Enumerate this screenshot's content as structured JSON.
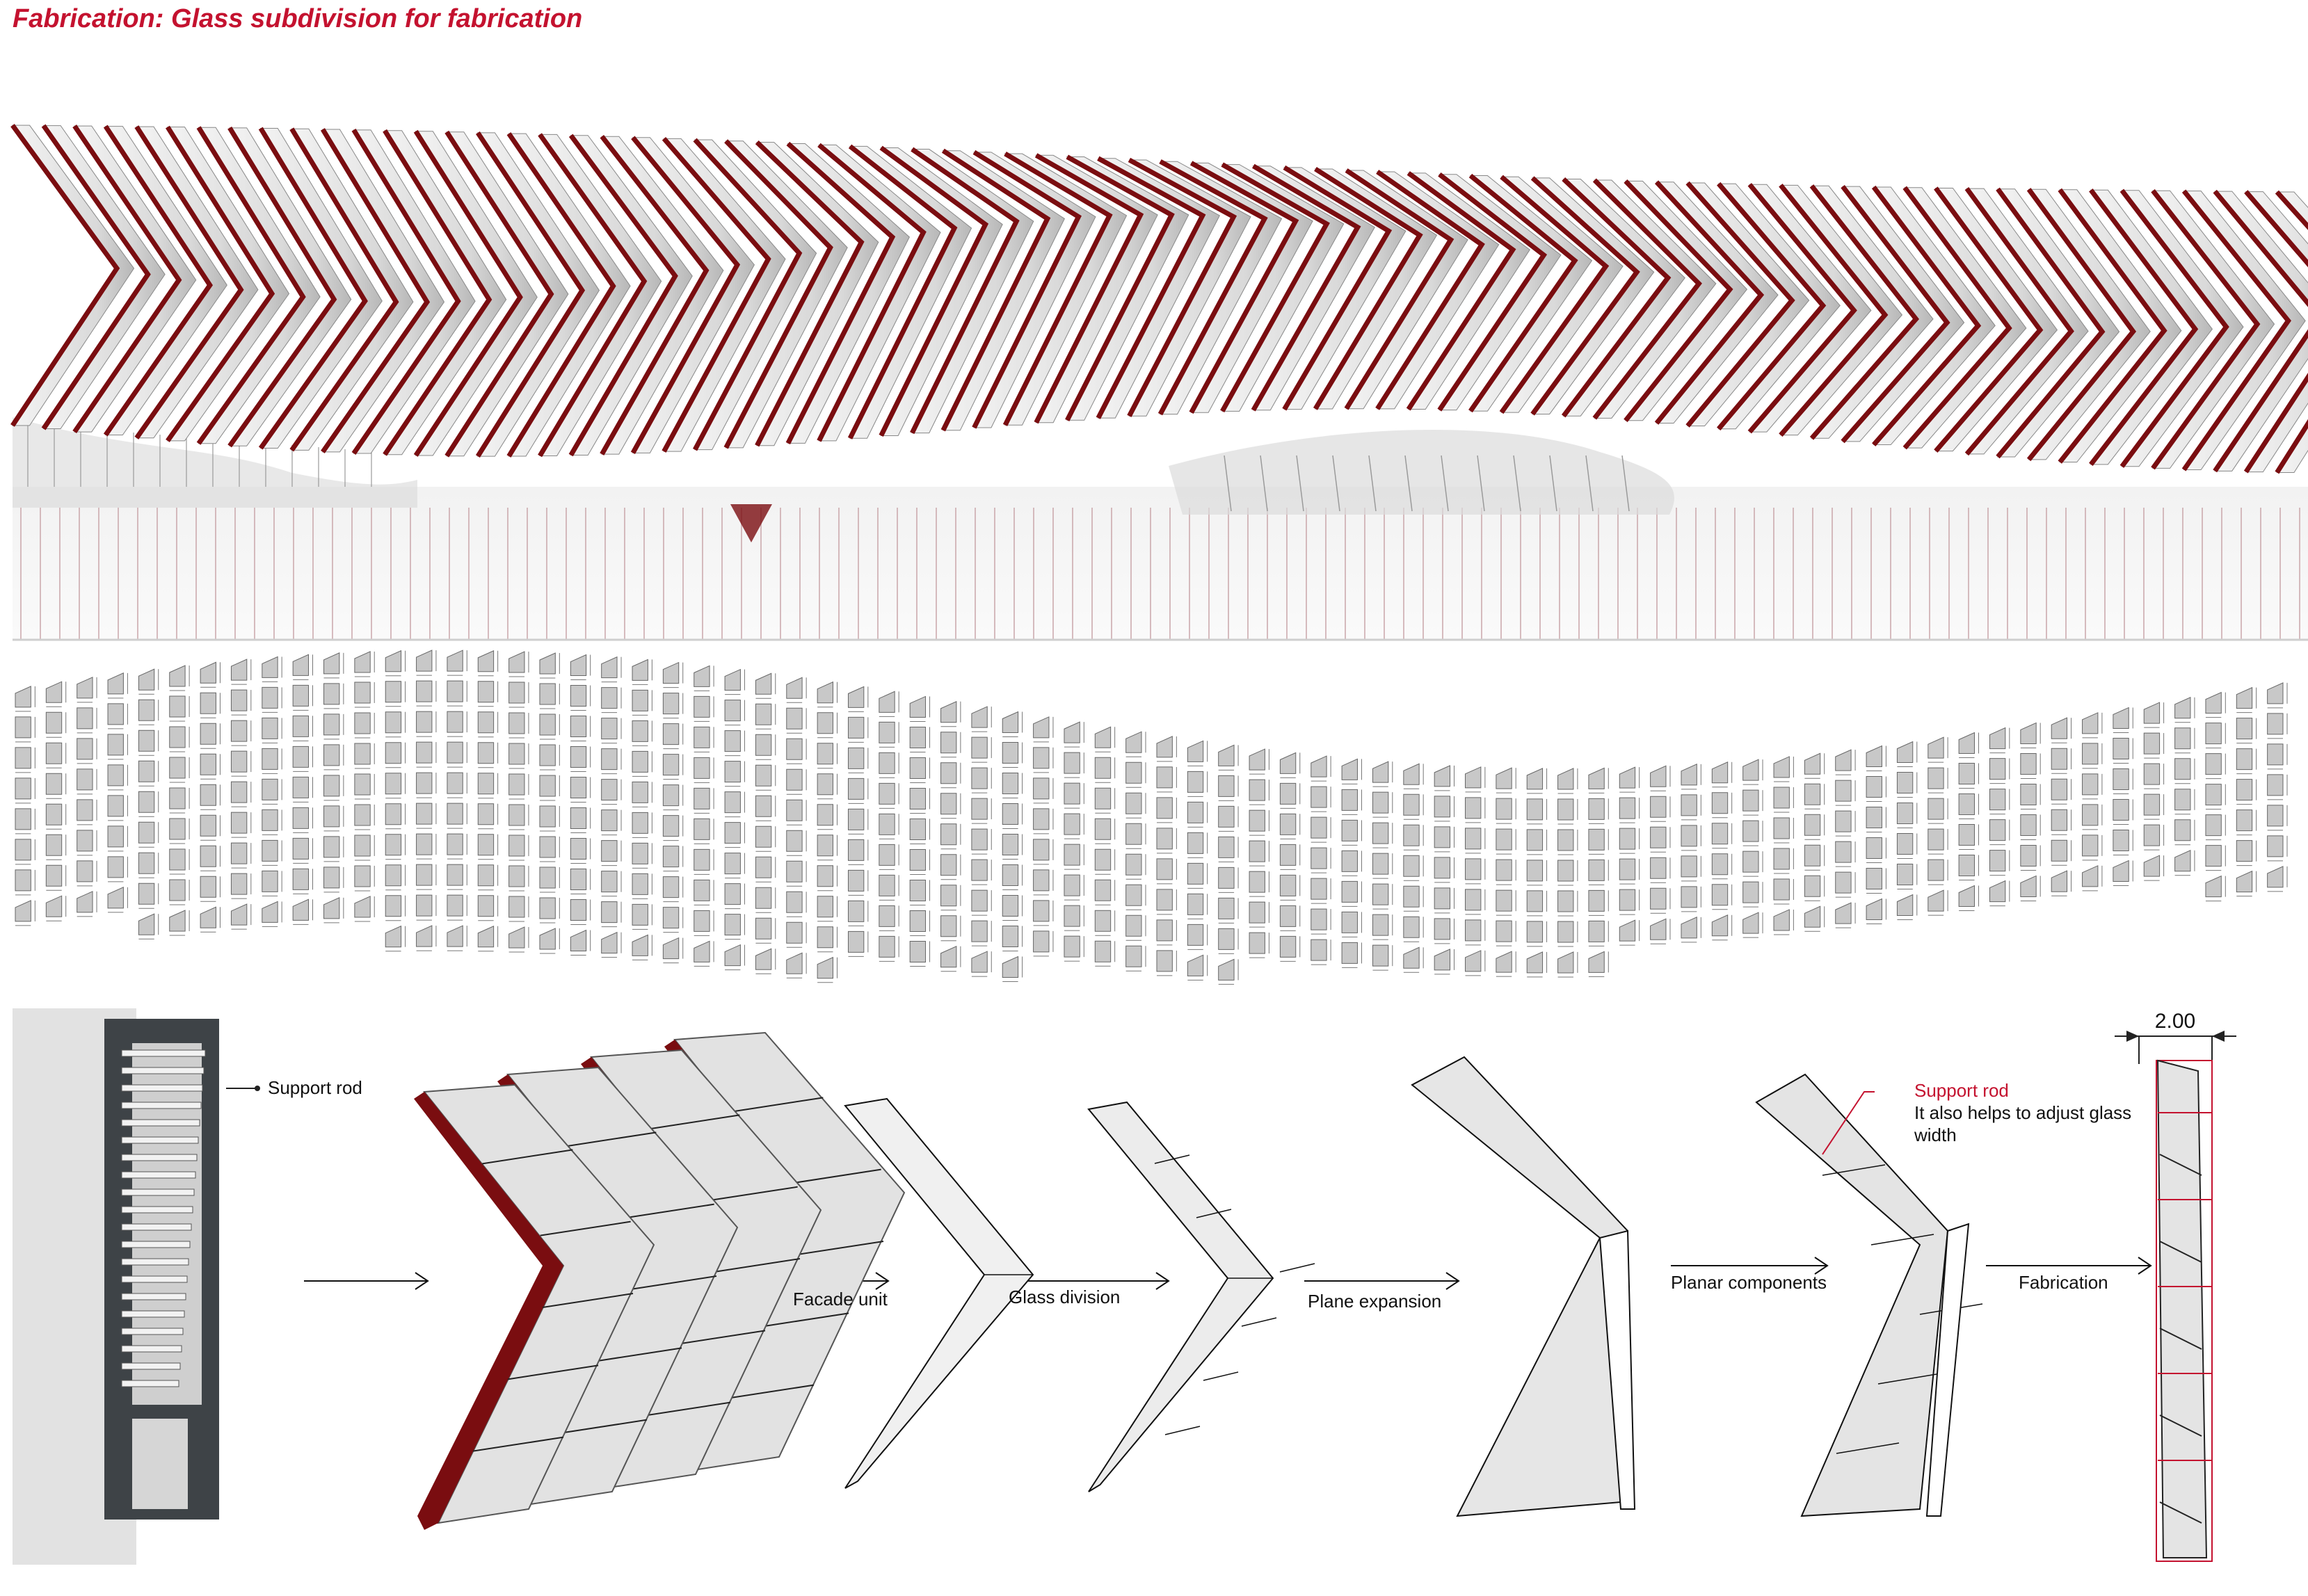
{
  "title": "Fabrication: Glass subdivision for fabrication",
  "colors": {
    "accent": "#c4122f",
    "fin": "#7a0d10",
    "glass": "#e6e6e6",
    "panel": "#c8c8c8",
    "line": "#222222",
    "steel": "#3e4347"
  },
  "process": {
    "support_rod_label": "Support rod",
    "steps": [
      {
        "label": "Facade unit"
      },
      {
        "label": "Glass division"
      },
      {
        "label": "Plane expansion"
      },
      {
        "label": "Planar components"
      },
      {
        "label": "Fabrication"
      }
    ],
    "annotation_title": "Support rod",
    "annotation_line1": "It also helps to adjust glass",
    "annotation_line2": "width",
    "dimension": "2.00"
  }
}
